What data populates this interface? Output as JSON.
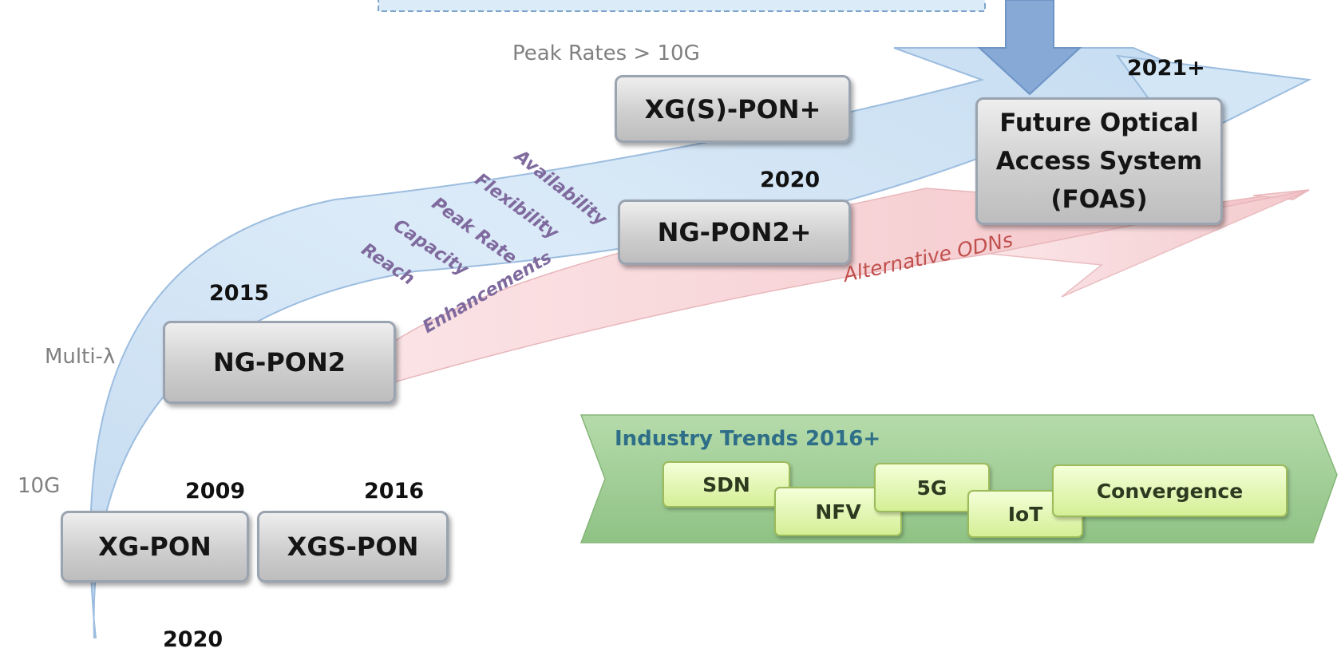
{
  "header_peak": "Peak Rates > 10G",
  "side_labels": {
    "multi": "Multi-λ",
    "ten_g": "10G"
  },
  "boxes": {
    "xgspon_plus": "XG(S)-PON+",
    "foas": "Future Optical\nAccess System\n(FOAS)",
    "ngpon2_plus": "NG-PON2+",
    "ngpon2": "NG-PON2",
    "xgpon": "XG-PON",
    "xgspon": "XGS-PON"
  },
  "years": {
    "y2021": "2021+",
    "y2020": "2020",
    "y2015": "2015",
    "y2009": "2009",
    "y2016": "2016",
    "y_bottom": "2020"
  },
  "alternative_odns": "Alternative ODNs",
  "enhancements": [
    "Enhancements",
    "Reach",
    "Capacity",
    "Peak Rate",
    "Flexibility",
    "Availability"
  ],
  "industry": {
    "title": "Industry Trends 2016+",
    "tags": [
      "SDN",
      "NFV",
      "5G",
      "IoT",
      "Convergence"
    ]
  },
  "colors": {
    "band_blue": "#cfe3f4",
    "band_pink": "#f6d0d3",
    "arrow_blue": "#86a9d6",
    "green_banner": "#9ccc90",
    "enh_text": "#7f6a9e",
    "alt_text": "#c0504d"
  }
}
